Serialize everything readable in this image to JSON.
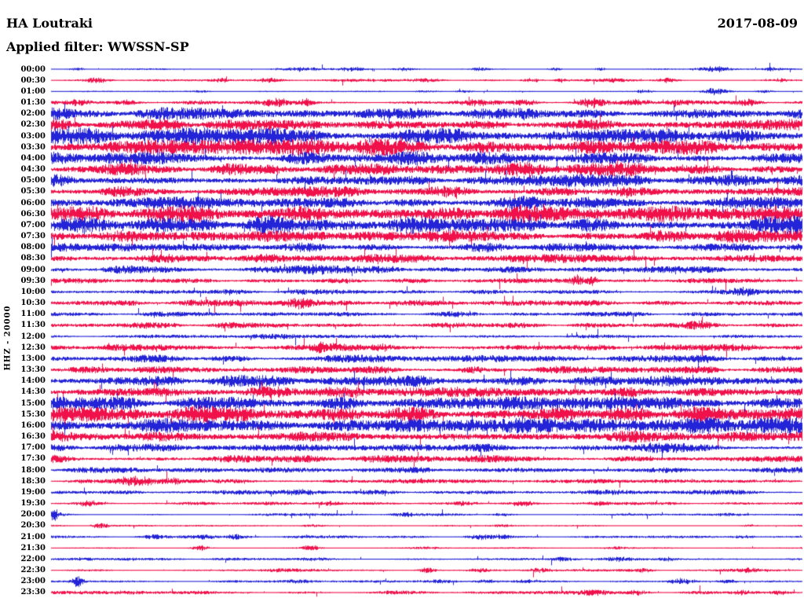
{
  "header": {
    "station": "HA Loutraki",
    "date": "2017-08-09",
    "filter": "Applied filter: WWSSN-SP"
  },
  "axis": {
    "left_label": "HHZ - 20000"
  },
  "colors": {
    "trace_blue": "#2323d7",
    "trace_red": "#f0104a",
    "text": "#000000",
    "background": "#ffffff"
  },
  "chart_data": {
    "type": "line",
    "variant": "helicorder_day_plot",
    "title": "HA Loutraki",
    "date": "2017-08-09",
    "filter": "WWSSN-SP",
    "channel_scale_label": "HHZ - 20000",
    "row_duration_minutes": 30,
    "legend": "alternating blue/red traces, one row per 30 minutes, 00:00 to 23:30",
    "rows": [
      {
        "label": "00:00",
        "color": "blue",
        "amp": 0.6,
        "bursts": [
          [
            0.035,
            8,
            1.2
          ],
          [
            0.33,
            25,
            1.5
          ],
          [
            0.4,
            12,
            1.8
          ],
          [
            0.47,
            10,
            1.2
          ],
          [
            0.57,
            6,
            1.2
          ],
          [
            0.67,
            6,
            1.5
          ],
          [
            0.73,
            5,
            1.5
          ],
          [
            0.88,
            14,
            2.8
          ],
          [
            0.96,
            6,
            1.5
          ]
        ]
      },
      {
        "label": "00:30",
        "color": "red",
        "amp": 0.9,
        "bursts": [
          [
            0.06,
            10,
            2.2
          ],
          [
            0.225,
            8,
            2.0
          ],
          [
            0.29,
            8,
            1.6
          ],
          [
            0.42,
            30,
            1.2
          ],
          [
            0.5,
            15,
            1.4
          ],
          [
            0.64,
            8,
            1.8
          ],
          [
            0.68,
            6,
            1.8
          ],
          [
            0.75,
            10,
            1.4
          ],
          [
            0.82,
            10,
            2.2
          ],
          [
            0.97,
            6,
            1.4
          ]
        ]
      },
      {
        "label": "01:00",
        "color": "blue",
        "amp": 0.5,
        "bursts": [
          [
            0.2,
            10,
            0.8
          ],
          [
            0.5,
            12,
            1.0
          ],
          [
            0.55,
            8,
            1.2
          ],
          [
            0.79,
            8,
            1.4
          ],
          [
            0.885,
            10,
            3.5
          ],
          [
            0.95,
            8,
            1.2
          ]
        ]
      },
      {
        "label": "01:30",
        "color": "red",
        "amp": 1.4,
        "bursts": [
          [
            0.035,
            10,
            2.0
          ],
          [
            0.1,
            12,
            1.6
          ],
          [
            0.3,
            14,
            2.6
          ],
          [
            0.34,
            6,
            3.0
          ],
          [
            0.56,
            20,
            2.0
          ],
          [
            0.63,
            10,
            2.2
          ],
          [
            0.72,
            10,
            3.4
          ],
          [
            0.78,
            12,
            2.0
          ],
          [
            0.83,
            12,
            2.6
          ],
          [
            0.93,
            12,
            2.2
          ]
        ]
      },
      {
        "label": "02:00",
        "color": "blue",
        "amp": 4.3,
        "bursts": []
      },
      {
        "label": "02:30",
        "color": "red",
        "amp": 4.4,
        "bursts": []
      },
      {
        "label": "03:00",
        "color": "blue",
        "amp": 5.8,
        "bursts": []
      },
      {
        "label": "03:30",
        "color": "red",
        "amp": 5.8,
        "bursts": []
      },
      {
        "label": "04:00",
        "color": "blue",
        "amp": 4.4,
        "bursts": [
          [
            0.5,
            40,
            1.5
          ]
        ]
      },
      {
        "label": "04:30",
        "color": "red",
        "amp": 4.8,
        "bursts": []
      },
      {
        "label": "05:00",
        "color": "blue",
        "amp": 4.4,
        "bursts": []
      },
      {
        "label": "05:30",
        "color": "red",
        "amp": 4.4,
        "bursts": []
      },
      {
        "label": "06:00",
        "color": "blue",
        "amp": 4.8,
        "bursts": []
      },
      {
        "label": "06:30",
        "color": "red",
        "amp": 6.2,
        "bursts": []
      },
      {
        "label": "07:00",
        "color": "blue",
        "amp": 6.2,
        "bursts": []
      },
      {
        "label": "07:30",
        "color": "red",
        "amp": 4.8,
        "bursts": []
      },
      {
        "label": "08:00",
        "color": "blue",
        "amp": 3.6,
        "bursts": []
      },
      {
        "label": "08:30",
        "color": "red",
        "amp": 3.1,
        "bursts": [
          [
            0.15,
            20,
            1.5
          ]
        ]
      },
      {
        "label": "09:00",
        "color": "blue",
        "amp": 2.7,
        "bursts": [
          [
            0.35,
            20,
            1.5
          ],
          [
            0.6,
            15,
            1.5
          ]
        ]
      },
      {
        "label": "09:30",
        "color": "red",
        "amp": 1.9,
        "bursts": [
          [
            0.7,
            6,
            4.5
          ],
          [
            0.72,
            5,
            4.0
          ]
        ]
      },
      {
        "label": "10:00",
        "color": "blue",
        "amp": 1.9,
        "bursts": [
          [
            0.92,
            12,
            2.2
          ]
        ]
      },
      {
        "label": "10:30",
        "color": "red",
        "amp": 2.3,
        "bursts": [
          [
            0.33,
            10,
            2.8
          ],
          [
            0.5,
            20,
            1.2
          ]
        ]
      },
      {
        "label": "11:00",
        "color": "blue",
        "amp": 1.7,
        "bursts": [
          [
            0.55,
            15,
            1.2
          ]
        ]
      },
      {
        "label": "11:30",
        "color": "red",
        "amp": 2.1,
        "bursts": [
          [
            0.12,
            15,
            1.2
          ],
          [
            0.86,
            10,
            2.4
          ]
        ]
      },
      {
        "label": "12:00",
        "color": "blue",
        "amp": 1.5,
        "bursts": [
          [
            0.3,
            20,
            0.8
          ]
        ]
      },
      {
        "label": "12:30",
        "color": "red",
        "amp": 2.6,
        "bursts": [
          [
            0.36,
            10,
            2.6
          ],
          [
            0.44,
            8,
            2.0
          ]
        ]
      },
      {
        "label": "13:00",
        "color": "blue",
        "amp": 2.6,
        "bursts": [
          [
            0.12,
            20,
            1.4
          ]
        ]
      },
      {
        "label": "13:30",
        "color": "red",
        "amp": 2.6,
        "bursts": [
          [
            0.56,
            10,
            2.0
          ]
        ]
      },
      {
        "label": "14:00",
        "color": "blue",
        "amp": 4.0,
        "bursts": []
      },
      {
        "label": "14:30",
        "color": "red",
        "amp": 4.0,
        "bursts": []
      },
      {
        "label": "15:00",
        "color": "blue",
        "amp": 4.6,
        "bursts": []
      },
      {
        "label": "15:30",
        "color": "red",
        "amp": 5.8,
        "bursts": []
      },
      {
        "label": "16:00",
        "color": "blue",
        "amp": 5.8,
        "bursts": []
      },
      {
        "label": "16:30",
        "color": "red",
        "amp": 4.6,
        "bursts": []
      },
      {
        "label": "17:00",
        "color": "blue",
        "amp": 3.1,
        "bursts": [
          [
            0.8,
            30,
            1.0
          ]
        ]
      },
      {
        "label": "17:30",
        "color": "red",
        "amp": 2.7,
        "bursts": []
      },
      {
        "label": "18:00",
        "color": "blue",
        "amp": 2.3,
        "bursts": []
      },
      {
        "label": "18:30",
        "color": "red",
        "amp": 1.5,
        "bursts": [
          [
            0.115,
            18,
            4.2
          ],
          [
            0.16,
            10,
            2.5
          ]
        ]
      },
      {
        "label": "19:00",
        "color": "blue",
        "amp": 1.7,
        "bursts": [
          [
            0.33,
            15,
            1.4
          ],
          [
            0.75,
            15,
            1.2
          ]
        ]
      },
      {
        "label": "19:30",
        "color": "red",
        "amp": 1.2,
        "bursts": [
          [
            0.05,
            8,
            2.0
          ],
          [
            0.37,
            10,
            1.5
          ],
          [
            0.55,
            10,
            1.6
          ],
          [
            0.63,
            8,
            1.6
          ],
          [
            0.73,
            8,
            1.2
          ]
        ]
      },
      {
        "label": "20:00",
        "color": "blue",
        "amp": 1.0,
        "bursts": [
          [
            0.004,
            5,
            4.5
          ],
          [
            0.33,
            25,
            1.1
          ],
          [
            0.47,
            12,
            1.3
          ],
          [
            0.6,
            10,
            1.2
          ],
          [
            0.9,
            10,
            1.0
          ]
        ]
      },
      {
        "label": "20:30",
        "color": "red",
        "amp": 0.65,
        "bursts": [
          [
            0.065,
            8,
            2.6
          ],
          [
            0.35,
            10,
            1.0
          ],
          [
            0.6,
            10,
            0.9
          ],
          [
            0.93,
            8,
            1.0
          ]
        ]
      },
      {
        "label": "21:00",
        "color": "blue",
        "amp": 1.0,
        "bursts": [
          [
            0.135,
            8,
            1.4
          ],
          [
            0.2,
            10,
            1.8
          ],
          [
            0.245,
            10,
            1.6
          ],
          [
            0.57,
            10,
            1.6
          ],
          [
            0.6,
            8,
            1.6
          ],
          [
            0.92,
            10,
            1.2
          ]
        ]
      },
      {
        "label": "21:30",
        "color": "red",
        "amp": 0.65,
        "bursts": [
          [
            0.2,
            8,
            2.2
          ],
          [
            0.345,
            8,
            2.4
          ],
          [
            0.5,
            12,
            0.9
          ],
          [
            0.75,
            10,
            0.9
          ]
        ]
      },
      {
        "label": "22:00",
        "color": "blue",
        "amp": 1.0,
        "bursts": [
          [
            0.1,
            15,
            0.9
          ],
          [
            0.35,
            15,
            1.0
          ],
          [
            0.68,
            10,
            1.7
          ],
          [
            0.75,
            12,
            1.7
          ],
          [
            0.82,
            8,
            1.4
          ]
        ]
      },
      {
        "label": "22:30",
        "color": "red",
        "amp": 1.0,
        "bursts": [
          [
            0.3,
            15,
            1.1
          ],
          [
            0.5,
            8,
            2.6
          ],
          [
            0.57,
            8,
            1.6
          ],
          [
            0.65,
            10,
            1.8
          ],
          [
            0.79,
            8,
            1.5
          ],
          [
            0.93,
            8,
            1.6
          ]
        ]
      },
      {
        "label": "23:00",
        "color": "blue",
        "amp": 0.9,
        "bursts": [
          [
            0.035,
            5,
            4.8
          ],
          [
            0.33,
            15,
            1.2
          ],
          [
            0.52,
            12,
            1.5
          ],
          [
            0.58,
            10,
            1.6
          ],
          [
            0.63,
            10,
            1.5
          ],
          [
            0.84,
            12,
            2.6
          ],
          [
            0.9,
            10,
            1.5
          ]
        ]
      },
      {
        "label": "23:30",
        "color": "red",
        "amp": 1.2,
        "bursts": [
          [
            0.1,
            20,
            1.0
          ],
          [
            0.45,
            15,
            1.1
          ],
          [
            0.72,
            12,
            2.0
          ],
          [
            0.78,
            8,
            1.5
          ],
          [
            0.92,
            10,
            1.8
          ],
          [
            0.97,
            6,
            1.6
          ]
        ]
      }
    ]
  }
}
